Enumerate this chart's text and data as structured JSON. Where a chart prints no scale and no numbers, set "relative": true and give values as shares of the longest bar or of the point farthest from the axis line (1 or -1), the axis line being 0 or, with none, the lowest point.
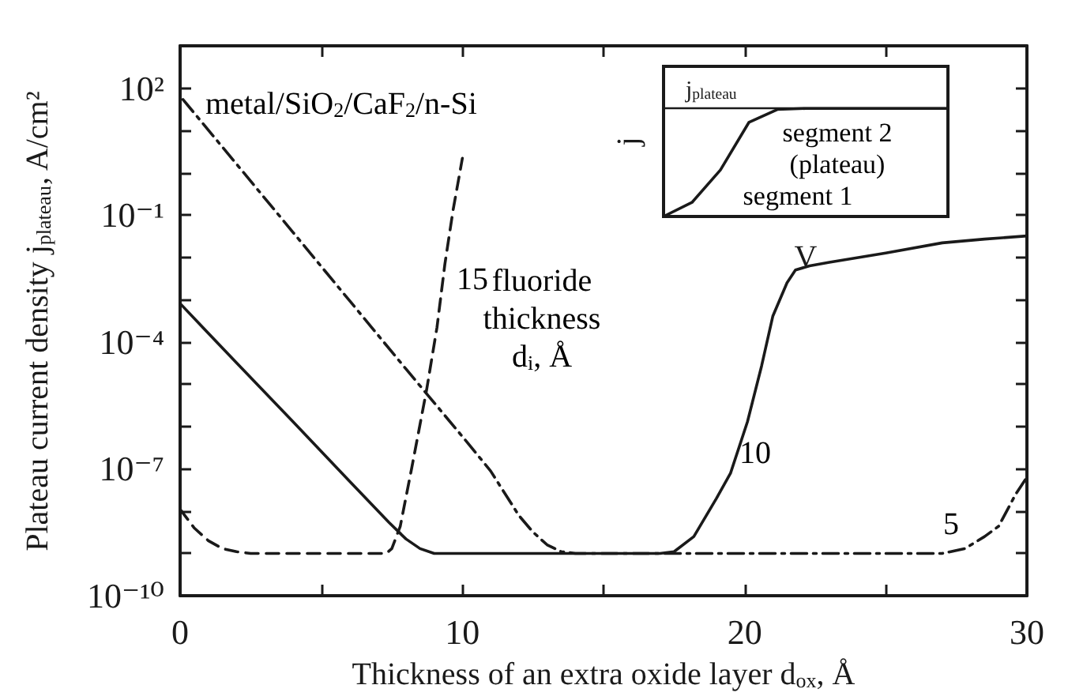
{
  "chart_data": [
    {
      "type": "line",
      "xlabel": "Thickness of an extra oxide layer d$_{ox}$, Å",
      "ylabel": "Plateau current density j$_{plateau}$, A/cm²",
      "log": "y",
      "marker": "none",
      "xlim": [
        0,
        30
      ],
      "xticks": [
        0,
        {
          "value": 5,
          "label": null
        },
        10,
        {
          "value": 15,
          "label": null
        },
        20,
        {
          "value": 25,
          "label": null
        },
        30
      ],
      "ylim": [
        1e-10,
        1000
      ],
      "yticks": [
        {
          "value": 1e-10,
          "label": "10⁻¹⁰"
        },
        {
          "value": 1e-09,
          "label": null
        },
        {
          "value": 1e-08,
          "label": null
        },
        {
          "value": 1e-07,
          "label": "10⁻⁷"
        },
        {
          "value": 1e-06,
          "label": null
        },
        {
          "value": 1e-05,
          "label": null
        },
        {
          "value": 0.0001,
          "label": "10⁻⁴"
        },
        {
          "value": 0.001,
          "label": null
        },
        {
          "value": 0.01,
          "label": null
        },
        {
          "value": 0.1,
          "label": "10⁻¹"
        },
        {
          "value": 1,
          "label": null
        },
        {
          "value": 10,
          "label": null
        },
        {
          "value": 100,
          "label": "10²"
        }
      ],
      "series": [
        {
          "color": "#1a1a1a",
          "line_style": "solid",
          "x": [
            0,
            0.7,
            2,
            4,
            6,
            7.4,
            8,
            8.5,
            9,
            12,
            15,
            17,
            17.5,
            18.2,
            19,
            19.5,
            20.1,
            20.6,
            21,
            21.5,
            21.8,
            22.3,
            23,
            25,
            27,
            28.5,
            30
          ],
          "values": [
            0.00081,
            0.00026,
            3.2e-05,
            1.3e-06,
            5.1e-08,
            5.4e-09,
            2.2e-09,
            1.3e-09,
            1e-09,
            1e-09,
            1e-09,
            1e-09,
            1.1e-09,
            2.5e-09,
            2e-08,
            7.9e-08,
            1.3e-06,
            2.7e-05,
            0.00041,
            0.0025,
            0.005,
            0.0063,
            0.0076,
            0.0126,
            0.022,
            0.027,
            0.032
          ]
        },
        {
          "color": "#1a1a1a",
          "line_style": "dashdot",
          "x": [
            0.1,
            2,
            4,
            6,
            8,
            10,
            11,
            12,
            12.5,
            13,
            13.5,
            14,
            15,
            20,
            25,
            27,
            27.8,
            28.5,
            29,
            29.6,
            30
          ],
          "values": [
            54,
            1.6,
            0.039,
            0.00095,
            2.3e-05,
            5.8e-07,
            8.9e-08,
            7.9e-09,
            3.2e-09,
            1.6e-09,
            1.1e-09,
            1e-09,
            1e-09,
            1e-09,
            1e-09,
            1e-09,
            1.3e-09,
            2.5e-09,
            4.4e-09,
            2.5e-08,
            6.3e-08
          ]
        },
        {
          "color": "#1a1a1a",
          "line_style": "dashed",
          "x": [
            0,
            0.5,
            1,
            1.5,
            2,
            2.5,
            3,
            7.3,
            7.5,
            7.8,
            8.2,
            8.73,
            9.1,
            9.38,
            9.67,
            10
          ],
          "values": [
            1.1e-08,
            4e-09,
            2e-09,
            1.3e-09,
            1.1e-09,
            1e-09,
            1e-09,
            1e-09,
            1.3e-09,
            4.4e-09,
            1e-07,
            7.2e-06,
            0.00022,
            0.0069,
            0.13,
            2.2
          ]
        }
      ],
      "annotations": [
        "metal/SiO$_{2}$/CaF$_{2}$/n-Si",
        "fluoride\nthickness\nd$_{i}$, Å",
        "15",
        "10",
        "5"
      ]
    },
    {
      "type": "line",
      "relative": true,
      "xlabel": "V",
      "ylabel": "j",
      "color": "#1a1a1a",
      "categories": [
        null,
        null,
        null,
        null,
        null,
        null,
        null,
        null,
        null,
        null,
        null
      ],
      "values": [
        0,
        0.13,
        0.43,
        0.87,
        0.99,
        1,
        1,
        1,
        1,
        1,
        1
      ],
      "ref_lines": [
        {
          "axis": "y",
          "value": 1,
          "label": "j$_{plateau}$"
        }
      ],
      "annotations": [
        "segment 2\n(plateau)",
        "segment 1"
      ]
    }
  ]
}
